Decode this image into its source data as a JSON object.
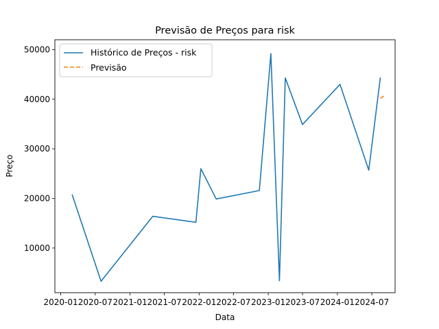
{
  "chart_data": {
    "type": "line",
    "title": "Previsão de Preços para risk",
    "xlabel": "Data",
    "ylabel": "Preço",
    "xlim": [
      "2019-12-01",
      "2024-11-01"
    ],
    "ylim": [
      1000,
      52000
    ],
    "x_ticks": [
      "2020-01",
      "2020-07",
      "2021-01",
      "2021-07",
      "2022-01",
      "2022-07",
      "2023-01",
      "2023-07",
      "2024-01",
      "2024-07"
    ],
    "y_ticks": [
      10000,
      20000,
      30000,
      40000,
      50000
    ],
    "grid": false,
    "legend": "upper-left",
    "series": [
      {
        "name": "Histórico de Preços - risk",
        "color": "#1f77b4",
        "style": "solid",
        "x": [
          "2020-03-01",
          "2020-08-01",
          "2021-05-01",
          "2021-12-15",
          "2022-01-10",
          "2022-04-01",
          "2022-11-15",
          "2023-01-15",
          "2023-03-01",
          "2023-04-01",
          "2023-07-01",
          "2024-01-15",
          "2024-06-15",
          "2024-08-15"
        ],
        "y": [
          20800,
          3300,
          16400,
          15200,
          26000,
          19900,
          21600,
          49200,
          3400,
          44300,
          34900,
          43000,
          25700,
          44400
        ]
      },
      {
        "name": "Previsão",
        "color": "#ff7f0e",
        "style": "dashed",
        "x": [
          "2024-08-15",
          "2024-09-10"
        ],
        "y": [
          40200,
          40800
        ]
      }
    ]
  }
}
